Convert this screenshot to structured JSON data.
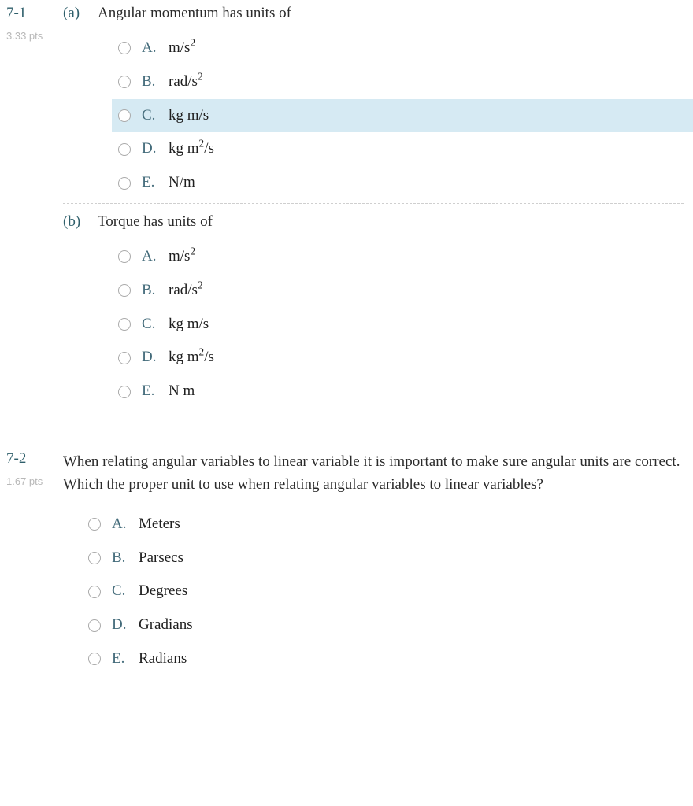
{
  "text_color": "#2b2b2b",
  "accent_color": "#2f5f6b",
  "muted_color": "#b8b8b8",
  "highlight_bg": "#d6eaf3",
  "q1": {
    "number": "7-1",
    "points": "3.33 pts",
    "part_a": {
      "label": "(a)",
      "stem": "Angular momentum has units of",
      "options": [
        {
          "letter": "A.",
          "text_html": "m/s<span class='sup'>2</span>",
          "highlighted": false
        },
        {
          "letter": "B.",
          "text_html": "rad/s<span class='sup'>2</span>",
          "highlighted": false
        },
        {
          "letter": "C.",
          "text_html": "kg m/s",
          "highlighted": true
        },
        {
          "letter": "D.",
          "text_html": "kg m<span class='sup'>2</span>/s",
          "highlighted": false
        },
        {
          "letter": "E.",
          "text_html": "N/m",
          "highlighted": false
        }
      ]
    },
    "part_b": {
      "label": "(b)",
      "stem": "Torque has units of",
      "options": [
        {
          "letter": "A.",
          "text_html": "m/s<span class='sup'>2</span>"
        },
        {
          "letter": "B.",
          "text_html": "rad/s<span class='sup'>2</span>"
        },
        {
          "letter": "C.",
          "text_html": "kg m/s"
        },
        {
          "letter": "D.",
          "text_html": "kg m<span class='sup'>2</span>/s"
        },
        {
          "letter": "E.",
          "text_html": "N m"
        }
      ]
    }
  },
  "q2": {
    "number": "7-2",
    "points": "1.67 pts",
    "stem": "When relating angular variables to linear variable it is important to make sure angular units are correct. Which the proper unit to use when relating angular variables to linear variables?",
    "options": [
      {
        "letter": "A.",
        "text": "Meters"
      },
      {
        "letter": "B.",
        "text": "Parsecs"
      },
      {
        "letter": "C.",
        "text": "Degrees"
      },
      {
        "letter": "D.",
        "text": "Gradians"
      },
      {
        "letter": "E.",
        "text": "Radians"
      }
    ]
  }
}
